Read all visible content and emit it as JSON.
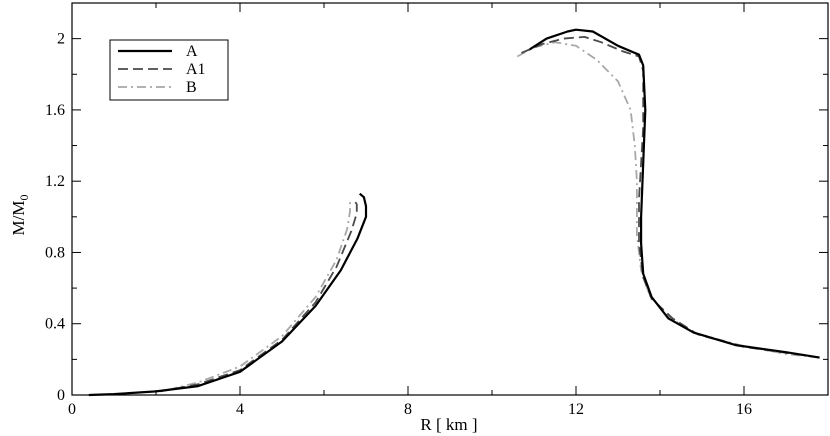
{
  "chart_data": {
    "type": "line",
    "xlabel": "R [ km ]",
    "ylabel_main": "M/M",
    "ylabel_sub": "0",
    "xlim": [
      0,
      18
    ],
    "ylim": [
      0,
      2.2
    ],
    "xticks": [
      0,
      4,
      8,
      12,
      16
    ],
    "yticks": [
      0,
      0.4,
      0.8,
      1.2,
      1.6,
      2
    ],
    "xtick_labels": [
      "0",
      "4",
      "8",
      "12",
      "16"
    ],
    "ytick_labels": [
      "0",
      "0.4",
      "0.8",
      "1.2",
      "1.6",
      "2"
    ],
    "grid": false,
    "legend_position": "top-left",
    "series": [
      {
        "name": "A",
        "color": "#000000",
        "dash": "solid",
        "segments": [
          [
            [
              0.4,
              0.0
            ],
            [
              1.0,
              0.005
            ],
            [
              2.0,
              0.02
            ],
            [
              3.0,
              0.05
            ],
            [
              4.0,
              0.13
            ],
            [
              5.0,
              0.3
            ],
            [
              5.8,
              0.5
            ],
            [
              6.4,
              0.7
            ],
            [
              6.8,
              0.88
            ],
            [
              7.0,
              1.0
            ],
            [
              7.0,
              1.06
            ],
            [
              6.95,
              1.11
            ],
            [
              6.85,
              1.13
            ]
          ],
          [
            [
              10.9,
              1.94
            ],
            [
              11.3,
              2.0
            ],
            [
              11.8,
              2.04
            ],
            [
              12.0,
              2.05
            ],
            [
              12.4,
              2.04
            ],
            [
              13.0,
              1.96
            ],
            [
              13.5,
              1.91
            ],
            [
              13.6,
              1.85
            ],
            [
              13.65,
              1.6
            ],
            [
              13.6,
              1.3
            ],
            [
              13.55,
              1.0
            ],
            [
              13.55,
              0.85
            ],
            [
              13.6,
              0.68
            ],
            [
              13.8,
              0.55
            ],
            [
              14.2,
              0.43
            ],
            [
              14.8,
              0.35
            ],
            [
              15.8,
              0.28
            ],
            [
              17.0,
              0.24
            ],
            [
              17.8,
              0.21
            ]
          ]
        ]
      },
      {
        "name": "A1",
        "color": "#4a4a4a",
        "dash": "dashed",
        "segments": [
          [
            [
              2.1,
              0.02
            ],
            [
              3.0,
              0.06
            ],
            [
              4.0,
              0.14
            ],
            [
              5.0,
              0.31
            ],
            [
              5.8,
              0.52
            ],
            [
              6.3,
              0.72
            ],
            [
              6.65,
              0.92
            ],
            [
              6.78,
              1.02
            ],
            [
              6.78,
              1.07
            ],
            [
              6.7,
              1.1
            ]
          ],
          [
            [
              10.7,
              1.92
            ],
            [
              11.2,
              1.97
            ],
            [
              11.7,
              2.0
            ],
            [
              12.2,
              2.01
            ],
            [
              12.6,
              1.98
            ],
            [
              13.1,
              1.93
            ],
            [
              13.5,
              1.9
            ],
            [
              13.6,
              1.82
            ],
            [
              13.6,
              1.5
            ],
            [
              13.5,
              1.1
            ],
            [
              13.5,
              0.85
            ],
            [
              13.6,
              0.66
            ],
            [
              13.8,
              0.54
            ],
            [
              14.3,
              0.43
            ],
            [
              14.9,
              0.34
            ],
            [
              16.0,
              0.27
            ],
            [
              17.2,
              0.23
            ],
            [
              17.8,
              0.21
            ]
          ]
        ]
      },
      {
        "name": "B",
        "color": "#a8a8a8",
        "dash": "dashdot",
        "segments": [
          [
            [
              2.3,
              0.03
            ],
            [
              3.0,
              0.07
            ],
            [
              4.0,
              0.16
            ],
            [
              5.0,
              0.33
            ],
            [
              5.8,
              0.55
            ],
            [
              6.3,
              0.76
            ],
            [
              6.55,
              0.93
            ],
            [
              6.62,
              1.03
            ],
            [
              6.62,
              1.08
            ],
            [
              6.58,
              1.1
            ]
          ],
          [
            [
              10.6,
              1.9
            ],
            [
              11.0,
              1.95
            ],
            [
              11.5,
              1.98
            ],
            [
              12.0,
              1.96
            ],
            [
              12.5,
              1.88
            ],
            [
              13.0,
              1.76
            ],
            [
              13.3,
              1.6
            ],
            [
              13.4,
              1.4
            ],
            [
              13.45,
              1.2
            ],
            [
              13.45,
              0.9
            ],
            [
              13.55,
              0.7
            ],
            [
              13.75,
              0.56
            ],
            [
              14.2,
              0.44
            ],
            [
              14.8,
              0.35
            ],
            [
              15.9,
              0.28
            ],
            [
              17.0,
              0.23
            ],
            [
              17.8,
              0.21
            ]
          ]
        ]
      }
    ]
  },
  "colors": {
    "background": "#ffffff",
    "axis": "#000000"
  }
}
